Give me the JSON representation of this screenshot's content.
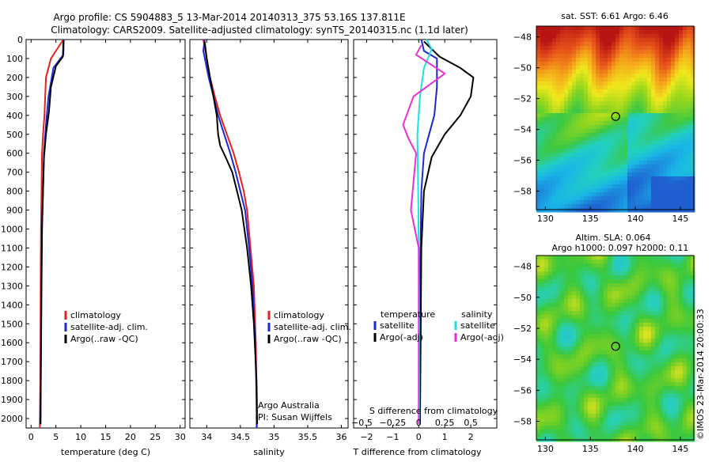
{
  "header": {
    "line1": "Argo profile: CS 5904883_5 13-Mar-2014 20140313_375 53.16S 137.811E",
    "line2": "Climatology: CARS2009. Satellite-adjusted climatology: synTS_20140315.nc (1.1d later)"
  },
  "chart_data": [
    {
      "id": "temperature",
      "type": "line",
      "xlabel": "temperature (deg C)",
      "xlim": [
        -1,
        31
      ],
      "xticks": [
        0,
        5,
        10,
        15,
        20,
        25,
        30
      ],
      "xtick_labels": [
        "0",
        "5",
        "10",
        "15",
        "20",
        "25",
        "30"
      ],
      "ylim": [
        2050,
        0
      ],
      "yticks": [
        0,
        100,
        200,
        300,
        400,
        500,
        600,
        700,
        800,
        900,
        1000,
        1100,
        1200,
        1300,
        1400,
        1500,
        1600,
        1700,
        1800,
        1900,
        2000
      ],
      "ytick_labels": [
        "0",
        "100",
        "200",
        "300",
        "400",
        "500",
        "600",
        "700",
        "800",
        "900",
        "1000",
        "1100",
        "1200",
        "1300",
        "1400",
        "1500",
        "1600",
        "1700",
        "1800",
        "1900",
        "2000"
      ],
      "legend": [
        "climatology",
        "satellite-adj. clim.",
        "Argo(..raw -QC)"
      ],
      "series": [
        {
          "name": "climatology",
          "color": "#e8201c",
          "x": [
            6.5,
            4.0,
            3.0,
            2.7,
            2.4,
            2.2,
            2.1,
            2.0,
            1.95,
            1.9,
            1.85,
            1.8,
            1.75
          ],
          "y": [
            0,
            100,
            200,
            400,
            500,
            600,
            800,
            1000,
            1200,
            1500,
            1800,
            1950,
            2050
          ]
        },
        {
          "name": "satellite-adj. clim.",
          "color": "#1a28d8",
          "x": [
            6.6,
            6.5,
            4.5,
            3.5,
            3.0,
            2.6,
            2.4,
            2.2,
            2.1,
            2.0,
            1.95,
            1.9
          ],
          "y": [
            0,
            80,
            150,
            300,
            450,
            600,
            800,
            1000,
            1200,
            1500,
            1800,
            2030
          ]
        },
        {
          "name": "Argo(..raw -QC)",
          "color": "#000000",
          "x": [
            6.5,
            6.4,
            5.0,
            4.0,
            3.6,
            3.0,
            2.6,
            2.4,
            2.2,
            2.1,
            2.0,
            1.9
          ],
          "y": [
            5,
            90,
            140,
            250,
            380,
            500,
            620,
            800,
            1000,
            1300,
            1700,
            2030
          ]
        }
      ]
    },
    {
      "id": "salinity",
      "type": "line",
      "xlabel": "salinity",
      "xlim": [
        33.75,
        36.1
      ],
      "xticks": [
        34,
        34.5,
        35,
        35.5,
        36
      ],
      "xtick_labels": [
        "34",
        "34.5",
        "35",
        "35.5",
        "36"
      ],
      "ylim": [
        2050,
        0
      ],
      "legend": [
        "climatology",
        "satellite-adj. clim.",
        "Argo(..raw -QC)"
      ],
      "annotation": [
        "Argo Australia",
        "PI: Susan Wijffels"
      ],
      "series": [
        {
          "name": "climatology",
          "color": "#e8201c",
          "x": [
            33.95,
            34.0,
            34.05,
            34.12,
            34.2,
            34.3,
            34.4,
            34.48,
            34.55,
            34.6,
            34.65,
            34.7,
            34.73,
            34.74,
            34.74
          ],
          "y": [
            0,
            100,
            200,
            300,
            400,
            500,
            600,
            700,
            800,
            900,
            1100,
            1300,
            1600,
            1900,
            2050
          ]
        },
        {
          "name": "satellite-adj. clim.",
          "color": "#1a28d8",
          "x": [
            33.97,
            33.95,
            34.03,
            34.1,
            34.17,
            34.26,
            34.35,
            34.43,
            34.5,
            34.57,
            34.63,
            34.68,
            34.72,
            34.74,
            34.745
          ],
          "y": [
            0,
            60,
            200,
            300,
            400,
            500,
            600,
            700,
            800,
            900,
            1100,
            1300,
            1600,
            1900,
            2050
          ]
        },
        {
          "name": "Argo(..raw -QC)",
          "color": "#000000",
          "x": [
            33.97,
            34.0,
            34.05,
            34.1,
            34.15,
            34.17,
            34.2,
            34.28,
            34.38,
            34.45,
            34.52,
            34.6,
            34.66,
            34.7,
            34.74,
            34.75
          ],
          "y": [
            10,
            100,
            200,
            300,
            400,
            500,
            560,
            620,
            700,
            800,
            900,
            1100,
            1300,
            1500,
            1800,
            2030
          ]
        }
      ]
    },
    {
      "id": "difference",
      "type": "line",
      "xlabel": "T difference from climatology",
      "xlabel2": "S difference from climatology",
      "xlim": [
        -2.5,
        3
      ],
      "xticks": [
        -2,
        -1,
        0,
        1,
        2
      ],
      "xtick_labels": [
        "−2",
        "−1",
        "0",
        "1",
        "2"
      ],
      "sxticks": [
        -2,
        -1,
        0,
        1,
        2
      ],
      "sxtick_labels": [
        "−0.5",
        "−0.25",
        "0",
        "0.25",
        "0.5"
      ],
      "ylim": [
        2050,
        0
      ],
      "legend_headers": [
        "temperature",
        "salinity"
      ],
      "legend": [
        "satellite",
        "Argo(-adj)",
        "satellite",
        "Argo(-adj)"
      ],
      "series": [
        {
          "name": "satellite",
          "group": "temperature",
          "color": "#1a28d8",
          "x": [
            0.1,
            0.2,
            0.7,
            0.7,
            0.6,
            0.4,
            0.2,
            0.1,
            0.08,
            0.05,
            0.05
          ],
          "y": [
            0,
            60,
            100,
            250,
            400,
            500,
            600,
            800,
            1000,
            1400,
            2030
          ]
        },
        {
          "name": "Argo(-adj)",
          "group": "temperature",
          "color": "#000000",
          "x": [
            0.2,
            0.8,
            1.6,
            2.1,
            2.0,
            1.6,
            1.0,
            0.5,
            0.2,
            0.1,
            0.05
          ],
          "y": [
            10,
            90,
            150,
            200,
            300,
            400,
            500,
            620,
            800,
            1100,
            2030
          ]
        },
        {
          "name": "satellite",
          "group": "salinity",
          "color": "#22dde4",
          "x": [
            0.3,
            0.5,
            0.2,
            0.05,
            -0.05,
            -0.02,
            0.0,
            0.02,
            0.02
          ],
          "y": [
            0,
            50,
            150,
            300,
            500,
            800,
            1100,
            1500,
            2030
          ]
        },
        {
          "name": "Argo(-adj)",
          "group": "salinity",
          "color": "#e830d8",
          "x": [
            0.1,
            -0.1,
            1.0,
            -0.2,
            -0.6,
            -0.4,
            -0.1,
            -0.3,
            0.0,
            0.0
          ],
          "y": [
            30,
            80,
            180,
            300,
            450,
            520,
            600,
            900,
            1100,
            2030
          ]
        }
      ]
    },
    {
      "id": "sst-map",
      "type": "heatmap",
      "title": "sat. SST: 6.61  Argo: 6.46",
      "xlim": [
        129,
        146.5
      ],
      "ylim": [
        -59.2,
        -47.3
      ],
      "xticks": [
        130,
        135,
        140,
        145
      ],
      "xtick_labels": [
        "130",
        "135",
        "140",
        "145"
      ],
      "yticks": [
        -48,
        -50,
        -52,
        -54,
        -56,
        -58
      ],
      "ytick_labels": [
        "−48",
        "−50",
        "−52",
        "−54",
        "−56",
        "−58"
      ],
      "marker": {
        "lon": 137.811,
        "lat": -53.16
      }
    },
    {
      "id": "sla-map",
      "type": "heatmap",
      "title": "Altim. SLA: 0.064",
      "subtitle": "Argo h1000: 0.097  h2000: 0.11",
      "xlim": [
        129,
        146.5
      ],
      "ylim": [
        -59.2,
        -47.3
      ],
      "xticks": [
        130,
        135,
        140,
        145
      ],
      "xtick_labels": [
        "130",
        "135",
        "140",
        "145"
      ],
      "yticks": [
        -48,
        -50,
        -52,
        -54,
        -56,
        -58
      ],
      "ytick_labels": [
        "−48",
        "−50",
        "−52",
        "−54",
        "−56",
        "−58"
      ],
      "marker": {
        "lon": 137.811,
        "lat": -53.16
      },
      "credit": "©IMOS 23-Mar-2014 20:00:33"
    }
  ]
}
